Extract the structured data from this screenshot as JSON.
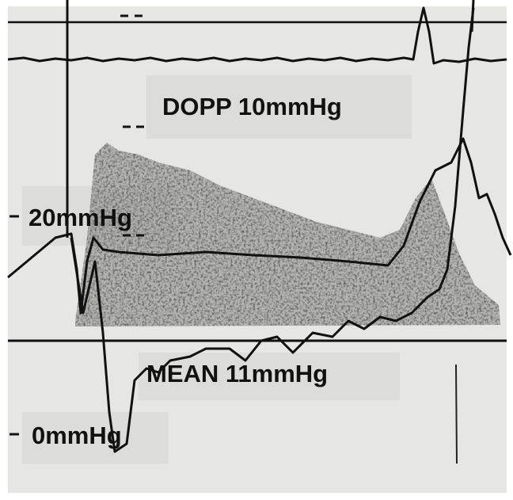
{
  "labels": {
    "doppler": "DOPP 10mmHg",
    "upper_scale": "20mmHg",
    "mean": "MEAN 11mmHg",
    "lower_scale": "0mmHg"
  }
}
